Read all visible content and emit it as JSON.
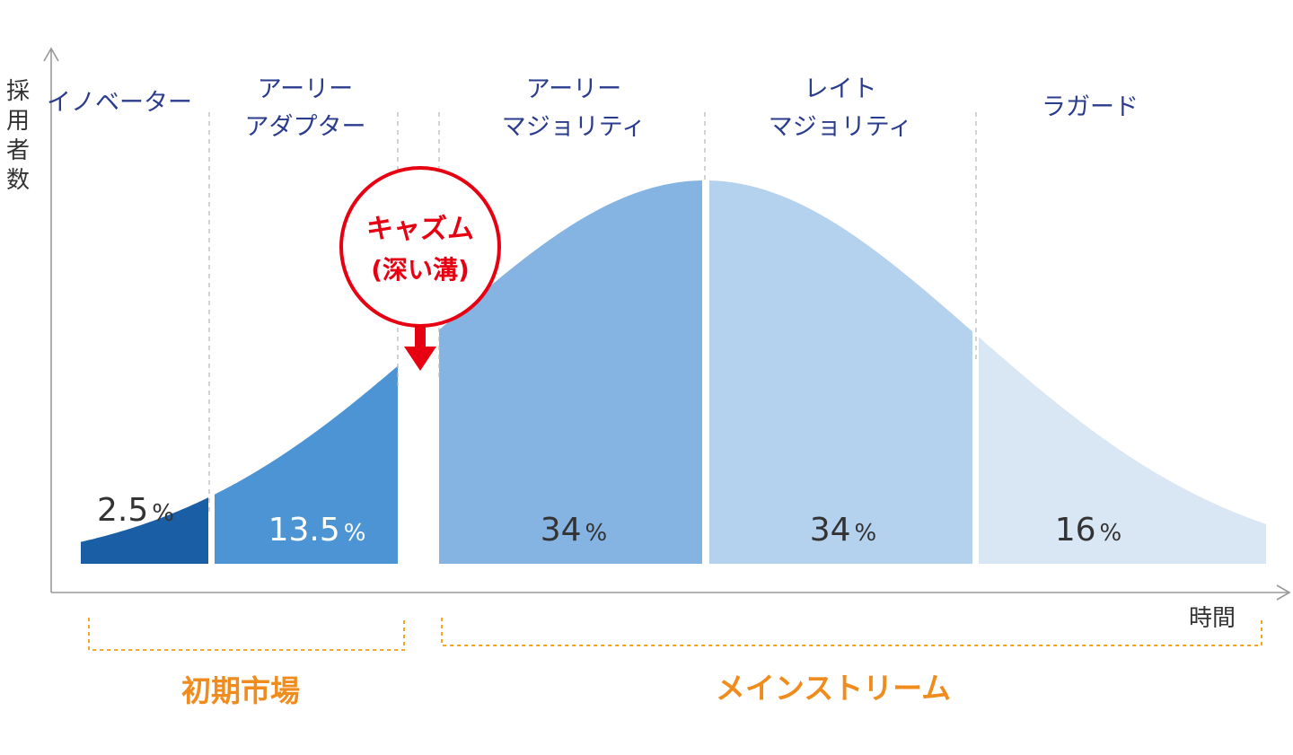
{
  "axis": {
    "y_label_chars": [
      "採",
      "用",
      "者",
      "数"
    ],
    "x_label": "時間"
  },
  "segments": [
    {
      "name_lines": [
        "イノベーター"
      ],
      "percent": "2.5",
      "unit": "%",
      "share": 2.5,
      "color": "#1a5fa6",
      "text_color": "#333333"
    },
    {
      "name_lines": [
        "アーリー",
        "アダプター"
      ],
      "percent": "13.5",
      "unit": "%",
      "share": 13.5,
      "color": "#4d94d4",
      "text_color": "#ffffff"
    },
    {
      "name_lines": [
        "アーリー",
        "マジョリティ"
      ],
      "percent": "34",
      "unit": "%",
      "share": 34,
      "color": "#85b3e2",
      "text_color": "#333333"
    },
    {
      "name_lines": [
        "レイト",
        "マジョリティ"
      ],
      "percent": "34",
      "unit": "%",
      "share": 34,
      "color": "#b4d1ee",
      "text_color": "#333333"
    },
    {
      "name_lines": [
        "ラガード"
      ],
      "percent": "16",
      "unit": "%",
      "share": 16,
      "color": "#d9e6f4",
      "text_color": "#333333"
    }
  ],
  "chasm": {
    "title": "キャズム",
    "subtitle": "(深い溝)",
    "color": "#e60012"
  },
  "markets": {
    "early": "初期市場",
    "mainstream": "メインストリーム",
    "color": "#f08c1e"
  }
}
